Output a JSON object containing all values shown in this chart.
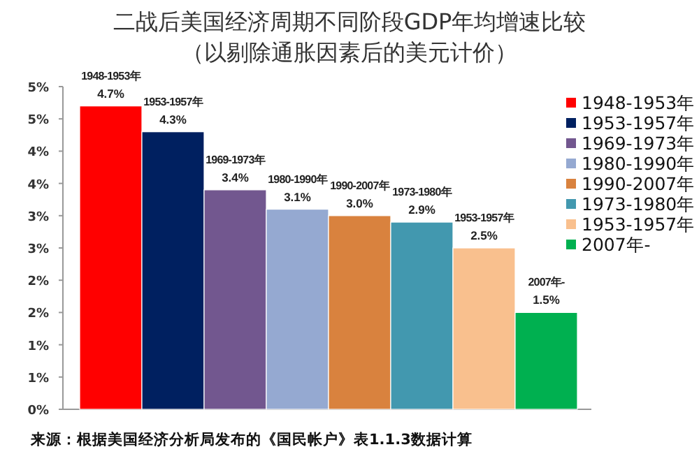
{
  "chart_data": {
    "type": "bar",
    "title": "二战后美国经济周期不同阶段GDP年均增速比较",
    "subtitle": "（以剔除通胀因素后的美元计价）",
    "categories": [
      null
    ],
    "series": [
      {
        "name": "1948-1953年",
        "color": "#ff0000",
        "values": [
          4.7
        ],
        "value_labels": [
          "4.7%"
        ]
      },
      {
        "name": "1953-1957年",
        "color": "#002060",
        "values": [
          4.3
        ],
        "value_labels": [
          "4.3%"
        ]
      },
      {
        "name": "1969-1973年",
        "color": "#72578f",
        "values": [
          3.4
        ],
        "value_labels": [
          "3.4%"
        ]
      },
      {
        "name": "1980-1990年",
        "color": "#95a9d1",
        "values": [
          3.1
        ],
        "value_labels": [
          "3.1%"
        ]
      },
      {
        "name": "1990-2007年",
        "color": "#d9823e",
        "values": [
          3.0
        ],
        "value_labels": [
          "3.0%"
        ]
      },
      {
        "name": "1973-1980年",
        "color": "#4298af",
        "values": [
          2.9
        ],
        "value_labels": [
          "2.9%"
        ]
      },
      {
        "name": "1953-1957年",
        "color": "#f9c08e",
        "values": [
          2.5
        ],
        "value_labels": [
          "2.5%"
        ]
      },
      {
        "name": "2007年-",
        "color": "#00b050",
        "values": [
          1.5
        ],
        "value_labels": [
          "1.5%"
        ]
      }
    ],
    "ylim": [
      0,
      5
    ],
    "yticks": [
      {
        "value": 0,
        "label": "0%"
      },
      {
        "value": 0.5,
        "label": "1%"
      },
      {
        "value": 1,
        "label": "1%"
      },
      {
        "value": 1.5,
        "label": "2%"
      },
      {
        "value": 2,
        "label": "2%"
      },
      {
        "value": 2.5,
        "label": "3%"
      },
      {
        "value": 3,
        "label": "3%"
      },
      {
        "value": 3.5,
        "label": "4%"
      },
      {
        "value": 4,
        "label": "4%"
      },
      {
        "value": 4.5,
        "label": "5%"
      },
      {
        "value": 5,
        "label": "5%"
      }
    ],
    "legend": "right",
    "annotations": [
      "来源：根据美国经济分析局发布的《国民帐户》表1.1.3数据计算"
    ]
  }
}
